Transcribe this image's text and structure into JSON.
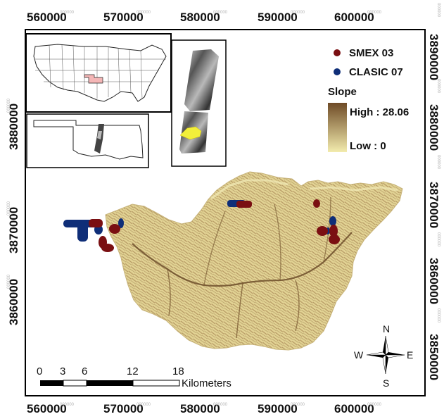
{
  "axes": {
    "top_ticks": [
      "560000",
      "570000",
      "580000",
      "590000",
      "600000"
    ],
    "bottom_ticks": [
      "560000",
      "570000",
      "580000",
      "590000",
      "600000"
    ],
    "left_ticks": [
      "3880000",
      "3870000",
      "3860000"
    ],
    "right_ticks": [
      "3890000",
      "3880000",
      "3870000",
      "3860000",
      "3850000"
    ],
    "faint_suffix": "000000"
  },
  "legend": {
    "series": [
      {
        "label": "SMEX 03",
        "color": "#7a0f12"
      },
      {
        "label": "CLASIC 07",
        "color": "#0f2e78"
      }
    ],
    "slope_title": "Slope",
    "slope_high": "High : 28.06",
    "slope_low": "Low : 0",
    "ramp_colors": [
      "#6e4a26",
      "#f3ecae"
    ]
  },
  "scale_bar": {
    "labels": [
      "0",
      "3",
      "6",
      "12",
      "18"
    ],
    "unit": "Kilometers"
  },
  "north_arrow": {
    "n": "N",
    "s": "S",
    "e": "E",
    "w": "W"
  },
  "colors": {
    "terrain_light": "#e9dfa2",
    "terrain_dark": "#7d5a33",
    "oklahoma_highlight": "#f4b6b6",
    "study_area_highlight": "#f2ef3a"
  }
}
